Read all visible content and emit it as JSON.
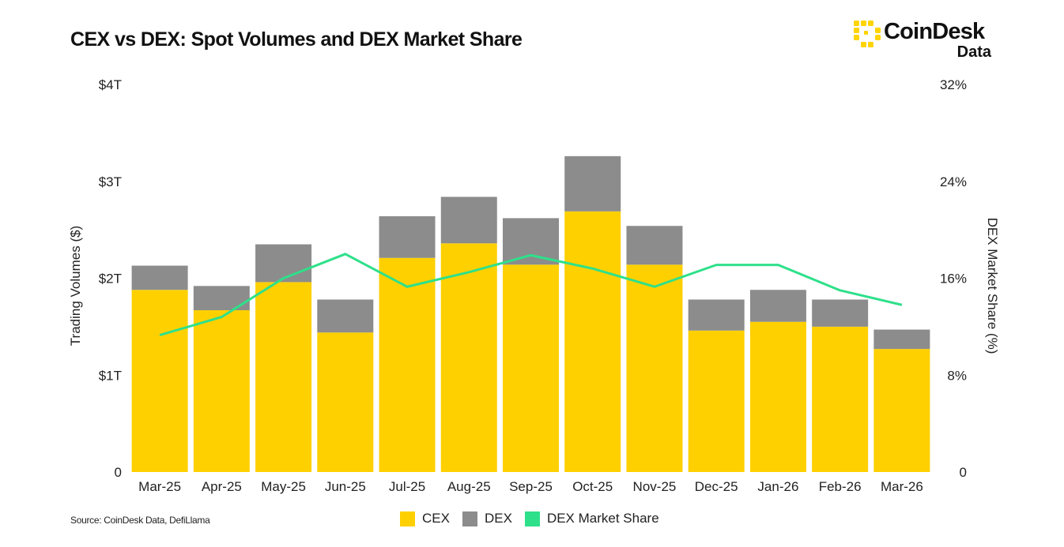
{
  "header": {
    "title": "CEX vs DEX: Spot Volumes and DEX Market Share"
  },
  "brand": {
    "name": "CoinDesk",
    "sub": "Data",
    "accent": "#FFD400"
  },
  "footer": {
    "source": "Source: CoinDesk Data, DefiLlama"
  },
  "legend": {
    "cex": "CEX",
    "dex": "DEX",
    "share": "DEX Market Share"
  },
  "colors": {
    "cex": "#FFD000",
    "dex": "#8C8C8C",
    "share": "#2EE08A"
  },
  "chart_data": {
    "type": "bar",
    "stacked": true,
    "title": "CEX vs DEX: Spot Volumes and DEX Market Share",
    "categories": [
      "Mar-25",
      "Apr-25",
      "May-25",
      "Jun-25",
      "Jul-25",
      "Aug-25",
      "Sep-25",
      "Oct-25",
      "Nov-25",
      "Dec-25",
      "Jan-26",
      "Feb-26",
      "Mar-26"
    ],
    "series": [
      {
        "name": "CEX",
        "axis": "left",
        "unit": "T",
        "values": [
          1.88,
          1.67,
          1.96,
          1.44,
          2.21,
          2.36,
          2.14,
          2.69,
          2.14,
          1.46,
          1.55,
          1.5,
          1.27
        ]
      },
      {
        "name": "DEX",
        "axis": "left",
        "unit": "T",
        "values": [
          0.25,
          0.25,
          0.39,
          0.34,
          0.43,
          0.48,
          0.48,
          0.57,
          0.4,
          0.32,
          0.33,
          0.28,
          0.2
        ]
      },
      {
        "name": "DEX Market Share",
        "type": "line",
        "axis": "right",
        "unit": "%",
        "values": [
          11.3,
          12.8,
          16.0,
          18.0,
          15.3,
          16.5,
          17.9,
          16.8,
          15.3,
          17.1,
          17.1,
          15.0,
          13.8
        ]
      }
    ],
    "ylabel": "Trading Volumes ($)",
    "y2label": "DEX Market Share (%)",
    "ylim": [
      0,
      4
    ],
    "y2lim": [
      0,
      32
    ],
    "yticks": [
      "0",
      "$1T",
      "$2T",
      "$3T",
      "$4T"
    ],
    "y2ticks": [
      "0",
      "8%",
      "16%",
      "24%",
      "32%"
    ],
    "grid": false,
    "legend_position": "bottom"
  }
}
